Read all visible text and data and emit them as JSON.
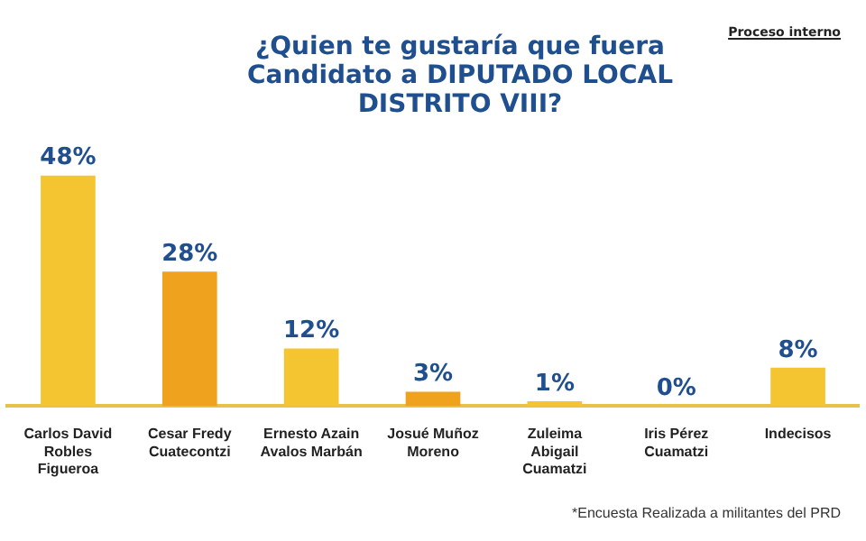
{
  "chart_data": {
    "type": "bar",
    "title": "¿Quien te gustaría que fuera Candidato a DIPUTADO LOCAL DISTRITO VIII?",
    "categories": [
      "Carlos David Robles Figueroa",
      "Cesar Fredy Cuatecontzi",
      "Ernesto Azain Avalos Marbán",
      "Josué Muñoz Moreno",
      "Zuleima Abigail Cuamatzi",
      "Iris Pérez Cuamatzi",
      "Indecisos"
    ],
    "values": [
      48,
      28,
      12,
      3,
      1,
      0,
      8
    ],
    "colors": [
      "#f5c531",
      "#eea21e",
      "#f5c531",
      "#eea21e",
      "#f5c531",
      "#eea21e",
      "#f5c531"
    ],
    "value_labels": [
      "48%",
      "28%",
      "12%",
      "3%",
      "1%",
      "0%",
      "8%"
    ],
    "annotations": [
      "Proceso interno",
      "*Encuesta Realizada a militantes del PRD"
    ]
  }
}
